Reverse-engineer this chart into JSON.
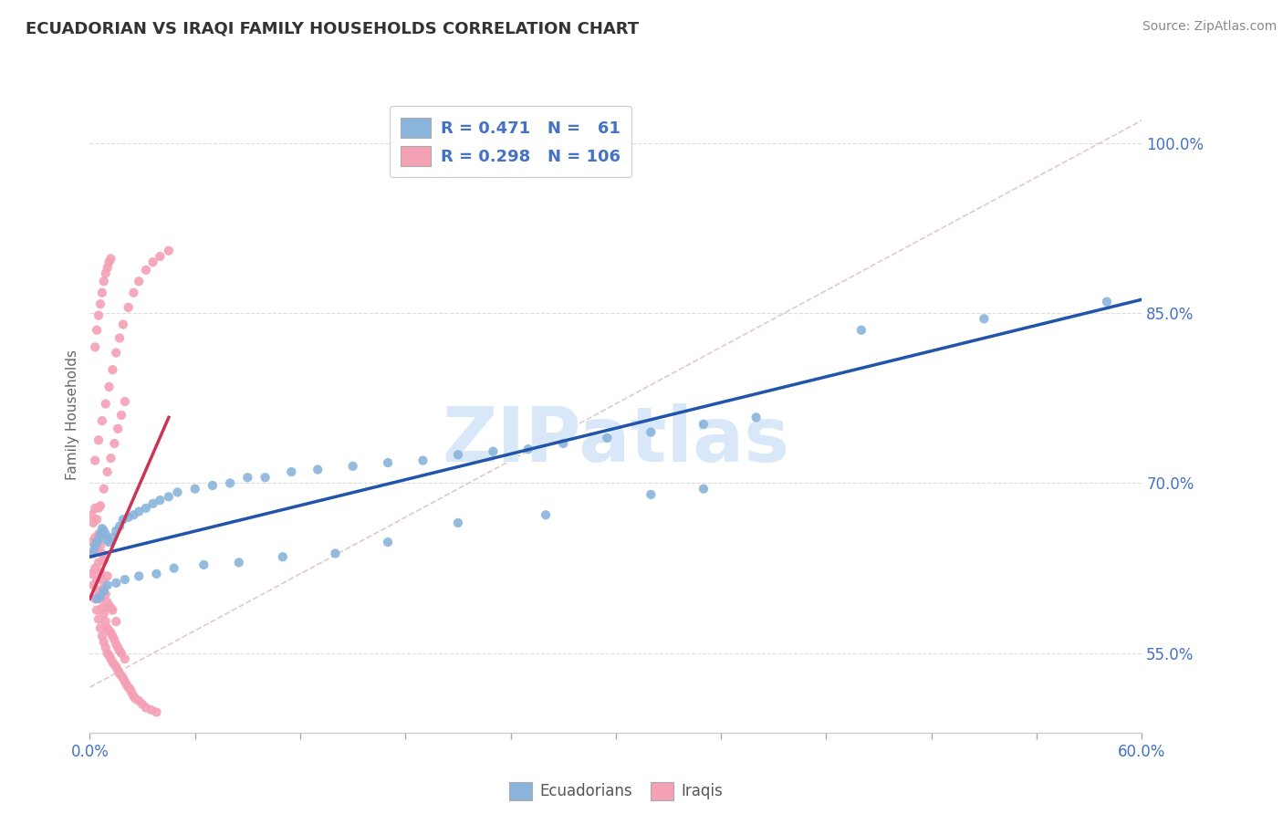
{
  "title": "ECUADORIAN VS IRAQI FAMILY HOUSEHOLDS CORRELATION CHART",
  "source": "Source: ZipAtlas.com",
  "ylabel": "Family Households",
  "yticks": [
    "55.0%",
    "70.0%",
    "85.0%",
    "100.0%"
  ],
  "ytick_values": [
    0.55,
    0.7,
    0.85,
    1.0
  ],
  "xlim": [
    0.0,
    0.6
  ],
  "ylim": [
    0.48,
    1.04
  ],
  "legend_r_ecuadorians": "R = 0.471",
  "legend_n_ecuadorians": "N =  61",
  "legend_r_iraqis": "R = 0.298",
  "legend_n_iraqis": "N = 106",
  "color_ecuadorians": "#8AB4DC",
  "color_iraqis": "#F4A0B5",
  "trendline_color_ecuadorians": "#2255AA",
  "trendline_color_iraqis": "#CC3355",
  "diagonal_color": "#DDBBBB",
  "ecuadorian_x": [
    0.002,
    0.003,
    0.004,
    0.005,
    0.006,
    0.007,
    0.008,
    0.009,
    0.01,
    0.011,
    0.013,
    0.015,
    0.017,
    0.019,
    0.022,
    0.025,
    0.028,
    0.032,
    0.036,
    0.04,
    0.045,
    0.05,
    0.06,
    0.07,
    0.08,
    0.09,
    0.1,
    0.115,
    0.13,
    0.15,
    0.17,
    0.19,
    0.21,
    0.23,
    0.25,
    0.27,
    0.295,
    0.32,
    0.35,
    0.38,
    0.32,
    0.35,
    0.26,
    0.21,
    0.17,
    0.14,
    0.11,
    0.085,
    0.065,
    0.048,
    0.038,
    0.028,
    0.02,
    0.015,
    0.01,
    0.008,
    0.006,
    0.004,
    0.58,
    0.51,
    0.44
  ],
  "ecuadorian_y": [
    0.64,
    0.645,
    0.648,
    0.65,
    0.655,
    0.66,
    0.658,
    0.655,
    0.65,
    0.648,
    0.652,
    0.658,
    0.662,
    0.668,
    0.67,
    0.672,
    0.675,
    0.678,
    0.682,
    0.685,
    0.688,
    0.692,
    0.695,
    0.698,
    0.7,
    0.705,
    0.705,
    0.71,
    0.712,
    0.715,
    0.718,
    0.72,
    0.725,
    0.728,
    0.73,
    0.735,
    0.74,
    0.745,
    0.752,
    0.758,
    0.69,
    0.695,
    0.672,
    0.665,
    0.648,
    0.638,
    0.635,
    0.63,
    0.628,
    0.625,
    0.62,
    0.618,
    0.615,
    0.612,
    0.61,
    0.605,
    0.6,
    0.598,
    0.86,
    0.845,
    0.835
  ],
  "iraqi_x": [
    0.001,
    0.001,
    0.001,
    0.002,
    0.002,
    0.002,
    0.003,
    0.003,
    0.003,
    0.003,
    0.004,
    0.004,
    0.004,
    0.004,
    0.005,
    0.005,
    0.005,
    0.005,
    0.005,
    0.006,
    0.006,
    0.006,
    0.006,
    0.007,
    0.007,
    0.007,
    0.007,
    0.008,
    0.008,
    0.008,
    0.008,
    0.009,
    0.009,
    0.009,
    0.01,
    0.01,
    0.01,
    0.01,
    0.011,
    0.011,
    0.011,
    0.012,
    0.012,
    0.012,
    0.013,
    0.013,
    0.013,
    0.014,
    0.014,
    0.015,
    0.015,
    0.015,
    0.016,
    0.016,
    0.017,
    0.017,
    0.018,
    0.018,
    0.019,
    0.02,
    0.02,
    0.021,
    0.022,
    0.023,
    0.024,
    0.025,
    0.026,
    0.028,
    0.03,
    0.032,
    0.035,
    0.038,
    0.003,
    0.005,
    0.007,
    0.009,
    0.011,
    0.013,
    0.015,
    0.017,
    0.019,
    0.022,
    0.025,
    0.028,
    0.032,
    0.036,
    0.04,
    0.045,
    0.006,
    0.008,
    0.01,
    0.012,
    0.014,
    0.016,
    0.018,
    0.02,
    0.003,
    0.004,
    0.005,
    0.006,
    0.007,
    0.008,
    0.009,
    0.01,
    0.011,
    0.012
  ],
  "iraqi_y": [
    0.62,
    0.648,
    0.672,
    0.61,
    0.638,
    0.665,
    0.598,
    0.625,
    0.652,
    0.678,
    0.588,
    0.615,
    0.642,
    0.668,
    0.58,
    0.605,
    0.63,
    0.655,
    0.678,
    0.572,
    0.598,
    0.622,
    0.645,
    0.565,
    0.59,
    0.615,
    0.638,
    0.56,
    0.585,
    0.608,
    0.632,
    0.555,
    0.578,
    0.602,
    0.55,
    0.572,
    0.595,
    0.618,
    0.548,
    0.57,
    0.592,
    0.545,
    0.568,
    0.59,
    0.542,
    0.565,
    0.588,
    0.54,
    0.562,
    0.538,
    0.558,
    0.578,
    0.535,
    0.555,
    0.532,
    0.552,
    0.53,
    0.55,
    0.528,
    0.525,
    0.545,
    0.522,
    0.52,
    0.518,
    0.515,
    0.512,
    0.51,
    0.508,
    0.505,
    0.502,
    0.5,
    0.498,
    0.72,
    0.738,
    0.755,
    0.77,
    0.785,
    0.8,
    0.815,
    0.828,
    0.84,
    0.855,
    0.868,
    0.878,
    0.888,
    0.895,
    0.9,
    0.905,
    0.68,
    0.695,
    0.71,
    0.722,
    0.735,
    0.748,
    0.76,
    0.772,
    0.82,
    0.835,
    0.848,
    0.858,
    0.868,
    0.878,
    0.885,
    0.89,
    0.895,
    0.898
  ],
  "iraqi_trendline_x": [
    0.0,
    0.045
  ],
  "background_color": "#FFFFFF",
  "grid_color": "#DDDDDD",
  "watermark": "ZIPatlas",
  "watermark_color": "#D8E8F8"
}
